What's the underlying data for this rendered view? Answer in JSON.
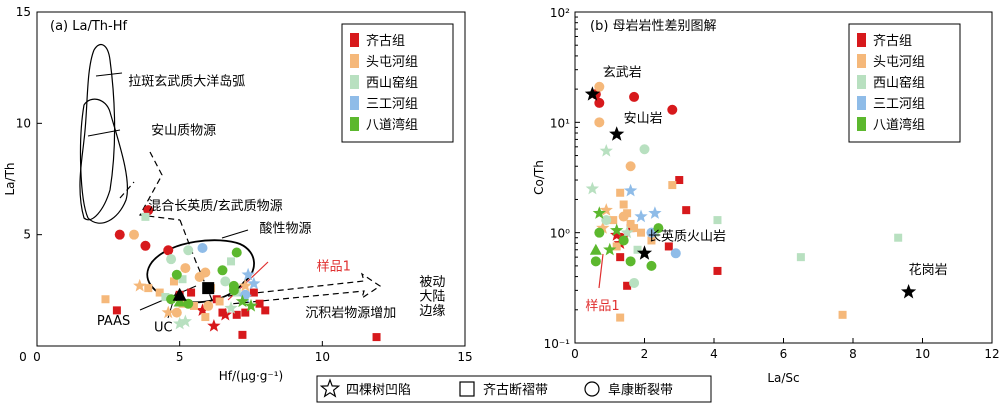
{
  "colors": {
    "qigu": "#d7191c",
    "toutunhe": "#f5b87a",
    "xishanyao": "#b8e0c0",
    "sangonghe": "#8fbce8",
    "badaowan": "#5cb82e",
    "sample_line": "#e03030"
  },
  "legend_groups": [
    "齐古组",
    "头屯河组",
    "西山窑组",
    "三工河组",
    "八道湾组"
  ],
  "bottom_legend": [
    {
      "shape": "star",
      "label": "四棵树凹陷"
    },
    {
      "shape": "square",
      "label": "齐古断褶带"
    },
    {
      "shape": "circle",
      "label": "阜康断裂带"
    }
  ],
  "chart_data": [
    {
      "type": "scatter",
      "title": "(a) La/Th-Hf",
      "xlabel": "Hf/(μg·g⁻¹)",
      "ylabel": "La/Th",
      "xlim": [
        0,
        15
      ],
      "ylim": [
        0,
        15
      ],
      "xticks": [
        0,
        5,
        10,
        15
      ],
      "yticks": [
        5,
        10,
        15
      ],
      "legend_position": "top-right",
      "annotations": [
        {
          "text": "拉斑玄武质大洋岛弧",
          "x": 3.2,
          "y": 11.7
        },
        {
          "text": "安山质物源",
          "x": 4.0,
          "y": 9.5
        },
        {
          "text": "混合长英质/玄武质物源",
          "x": 3.9,
          "y": 6.1
        },
        {
          "text": "酸性物源",
          "x": 7.8,
          "y": 5.1
        },
        {
          "text": "样品1",
          "x": 9.8,
          "y": 3.4
        },
        {
          "text": "被动",
          "x": 13.4,
          "y": 2.7
        },
        {
          "text": "大陆",
          "x": 13.4,
          "y": 2.05
        },
        {
          "text": "边缘",
          "x": 13.4,
          "y": 1.4
        },
        {
          "text": "沉积岩物源增加",
          "x": 9.4,
          "y": 1.3
        },
        {
          "text": "PAAS",
          "x": 2.1,
          "y": 0.95
        },
        {
          "text": "UC",
          "x": 4.1,
          "y": 0.65
        }
      ],
      "reference_points": [
        {
          "label": "PAAS",
          "shape": "filled-square",
          "x": 6.0,
          "y": 2.6
        },
        {
          "label": "UC",
          "shape": "filled-triangle",
          "x": 5.0,
          "y": 2.3
        }
      ],
      "series": [
        {
          "name": "齐古组",
          "points": [
            {
              "x": 2.9,
              "y": 5.0,
              "m": "circle"
            },
            {
              "x": 3.9,
              "y": 6.1,
              "m": "circle"
            },
            {
              "x": 3.8,
              "y": 4.5,
              "m": "circle"
            },
            {
              "x": 4.6,
              "y": 4.3,
              "m": "circle"
            },
            {
              "x": 2.8,
              "y": 1.6,
              "m": "square"
            },
            {
              "x": 5.0,
              "y": 2.3,
              "m": "square"
            },
            {
              "x": 5.4,
              "y": 2.4,
              "m": "square"
            },
            {
              "x": 6.3,
              "y": 2.1,
              "m": "square"
            },
            {
              "x": 6.5,
              "y": 1.5,
              "m": "square"
            },
            {
              "x": 7.0,
              "y": 1.4,
              "m": "square"
            },
            {
              "x": 7.3,
              "y": 1.5,
              "m": "square"
            },
            {
              "x": 7.6,
              "y": 2.4,
              "m": "square"
            },
            {
              "x": 7.8,
              "y": 1.9,
              "m": "square"
            },
            {
              "x": 8.0,
              "y": 1.6,
              "m": "square"
            },
            {
              "x": 7.2,
              "y": 0.5,
              "m": "square"
            },
            {
              "x": 11.9,
              "y": 0.4,
              "m": "square"
            },
            {
              "x": 5.8,
              "y": 1.6,
              "m": "star"
            },
            {
              "x": 6.2,
              "y": 0.9,
              "m": "star"
            },
            {
              "x": 6.6,
              "y": 1.4,
              "m": "star"
            }
          ]
        },
        {
          "name": "头屯河组",
          "points": [
            {
              "x": 3.4,
              "y": 5.0,
              "m": "circle"
            },
            {
              "x": 5.2,
              "y": 3.5,
              "m": "circle"
            },
            {
              "x": 5.7,
              "y": 3.1,
              "m": "circle"
            },
            {
              "x": 5.9,
              "y": 3.3,
              "m": "circle"
            },
            {
              "x": 4.9,
              "y": 1.5,
              "m": "circle"
            },
            {
              "x": 6.0,
              "y": 1.8,
              "m": "circle"
            },
            {
              "x": 2.4,
              "y": 2.1,
              "m": "square"
            },
            {
              "x": 3.9,
              "y": 2.6,
              "m": "square"
            },
            {
              "x": 4.3,
              "y": 2.4,
              "m": "square"
            },
            {
              "x": 5.1,
              "y": 1.9,
              "m": "square"
            },
            {
              "x": 5.5,
              "y": 1.8,
              "m": "square"
            },
            {
              "x": 5.9,
              "y": 1.3,
              "m": "square"
            },
            {
              "x": 6.4,
              "y": 2.0,
              "m": "square"
            },
            {
              "x": 6.1,
              "y": 2.6,
              "m": "square"
            },
            {
              "x": 4.8,
              "y": 2.9,
              "m": "square"
            },
            {
              "x": 3.6,
              "y": 2.7,
              "m": "star"
            },
            {
              "x": 4.6,
              "y": 1.5,
              "m": "star"
            },
            {
              "x": 7.3,
              "y": 2.7,
              "m": "star"
            }
          ]
        },
        {
          "name": "西山窑组",
          "points": [
            {
              "x": 4.7,
              "y": 3.9,
              "m": "circle"
            },
            {
              "x": 5.3,
              "y": 4.3,
              "m": "circle"
            },
            {
              "x": 6.6,
              "y": 2.9,
              "m": "circle"
            },
            {
              "x": 3.8,
              "y": 5.8,
              "m": "square"
            },
            {
              "x": 5.1,
              "y": 3.0,
              "m": "square"
            },
            {
              "x": 6.8,
              "y": 3.8,
              "m": "square"
            },
            {
              "x": 7.0,
              "y": 2.4,
              "m": "square"
            },
            {
              "x": 4.5,
              "y": 2.2,
              "m": "square"
            },
            {
              "x": 5.2,
              "y": 1.1,
              "m": "star"
            },
            {
              "x": 5.0,
              "y": 1.0,
              "m": "star"
            },
            {
              "x": 6.8,
              "y": 1.7,
              "m": "star"
            }
          ]
        },
        {
          "name": "三工河组",
          "points": [
            {
              "x": 5.8,
              "y": 4.4,
              "m": "circle"
            },
            {
              "x": 7.3,
              "y": 2.3,
              "m": "circle"
            },
            {
              "x": 7.4,
              "y": 3.2,
              "m": "star"
            },
            {
              "x": 7.6,
              "y": 2.8,
              "m": "star"
            },
            {
              "x": 7.3,
              "y": 2.2,
              "m": "star"
            }
          ]
        },
        {
          "name": "八道湾组",
          "points": [
            {
              "x": 4.7,
              "y": 2.1,
              "m": "circle"
            },
            {
              "x": 4.9,
              "y": 3.2,
              "m": "circle"
            },
            {
              "x": 5.3,
              "y": 1.9,
              "m": "circle"
            },
            {
              "x": 6.5,
              "y": 3.4,
              "m": "circle"
            },
            {
              "x": 6.9,
              "y": 2.5,
              "m": "circle"
            },
            {
              "x": 6.9,
              "y": 2.7,
              "m": "circle"
            },
            {
              "x": 7.0,
              "y": 4.2,
              "m": "circle"
            },
            {
              "x": 5.0,
              "y": 2.0,
              "m": "triangle"
            },
            {
              "x": 7.2,
              "y": 2.0,
              "m": "star"
            },
            {
              "x": 7.5,
              "y": 1.8,
              "m": "star"
            }
          ]
        }
      ]
    },
    {
      "type": "scatter",
      "title": "(b) 母岩岩性差别图解",
      "xlabel": "La/Sc",
      "ylabel": "Co/Th",
      "xlim": [
        0,
        12
      ],
      "ylim": [
        0.1,
        100
      ],
      "yscale": "log",
      "xticks": [
        0,
        2,
        4,
        6,
        8,
        10,
        12
      ],
      "yticks": [
        0.1,
        1,
        10,
        100
      ],
      "legend_position": "top-right",
      "annotations": [
        {
          "text": "玄武岩",
          "x": 0.8,
          "y": 26
        },
        {
          "text": "安山岩",
          "x": 1.4,
          "y": 10
        },
        {
          "text": "长英质火山岩",
          "x": 2.1,
          "y": 0.85
        },
        {
          "text": "花岗岩",
          "x": 9.6,
          "y": 0.42
        },
        {
          "text": "样品1",
          "x": 0.3,
          "y": 0.2
        }
      ],
      "reference_points": [
        {
          "label": "玄武岩",
          "shape": "black-star",
          "x": 0.5,
          "y": 18
        },
        {
          "label": "安山岩",
          "shape": "black-star",
          "x": 1.2,
          "y": 7.8
        },
        {
          "label": "长英质火山岩",
          "shape": "black-star",
          "x": 2.0,
          "y": 0.65
        },
        {
          "label": "花岗岩",
          "shape": "black-star",
          "x": 9.6,
          "y": 0.29
        }
      ],
      "series": [
        {
          "name": "齐古组",
          "points": [
            {
              "x": 0.6,
              "y": 18,
              "m": "circle"
            },
            {
              "x": 1.7,
              "y": 17,
              "m": "circle"
            },
            {
              "x": 2.8,
              "y": 13,
              "m": "circle"
            },
            {
              "x": 0.7,
              "y": 15,
              "m": "circle"
            },
            {
              "x": 3.0,
              "y": 3.0,
              "m": "square"
            },
            {
              "x": 3.2,
              "y": 1.6,
              "m": "square"
            },
            {
              "x": 2.7,
              "y": 0.75,
              "m": "square"
            },
            {
              "x": 4.1,
              "y": 0.45,
              "m": "square"
            },
            {
              "x": 1.3,
              "y": 0.6,
              "m": "square"
            },
            {
              "x": 1.4,
              "y": 0.9,
              "m": "square"
            },
            {
              "x": 1.6,
              "y": 1.1,
              "m": "square"
            },
            {
              "x": 1.5,
              "y": 0.33,
              "m": "square"
            },
            {
              "x": 1.3,
              "y": 0.8,
              "m": "star"
            },
            {
              "x": 1.2,
              "y": 0.95,
              "m": "star"
            }
          ]
        },
        {
          "name": "头屯河组",
          "points": [
            {
              "x": 0.7,
              "y": 21,
              "m": "circle"
            },
            {
              "x": 0.7,
              "y": 10,
              "m": "circle"
            },
            {
              "x": 1.6,
              "y": 4.0,
              "m": "circle"
            },
            {
              "x": 1.4,
              "y": 1.4,
              "m": "circle"
            },
            {
              "x": 2.8,
              "y": 2.7,
              "m": "square"
            },
            {
              "x": 1.3,
              "y": 2.3,
              "m": "square"
            },
            {
              "x": 1.4,
              "y": 1.8,
              "m": "square"
            },
            {
              "x": 1.5,
              "y": 1.5,
              "m": "square"
            },
            {
              "x": 1.6,
              "y": 1.2,
              "m": "square"
            },
            {
              "x": 1.7,
              "y": 1.1,
              "m": "square"
            },
            {
              "x": 1.9,
              "y": 1.0,
              "m": "square"
            },
            {
              "x": 1.1,
              "y": 1.3,
              "m": "square"
            },
            {
              "x": 1.2,
              "y": 0.75,
              "m": "square"
            },
            {
              "x": 2.2,
              "y": 0.85,
              "m": "square"
            },
            {
              "x": 1.3,
              "y": 0.17,
              "m": "square"
            },
            {
              "x": 7.7,
              "y": 0.18,
              "m": "square"
            },
            {
              "x": 0.9,
              "y": 1.6,
              "m": "star"
            },
            {
              "x": 0.8,
              "y": 1.1,
              "m": "star"
            }
          ]
        },
        {
          "name": "西山窑组",
          "points": [
            {
              "x": 2.0,
              "y": 5.7,
              "m": "circle"
            },
            {
              "x": 0.9,
              "y": 1.3,
              "m": "circle"
            },
            {
              "x": 1.7,
              "y": 0.35,
              "m": "circle"
            },
            {
              "x": 4.1,
              "y": 1.3,
              "m": "square"
            },
            {
              "x": 6.5,
              "y": 0.6,
              "m": "square"
            },
            {
              "x": 9.3,
              "y": 0.9,
              "m": "square"
            },
            {
              "x": 2.3,
              "y": 1.0,
              "m": "square"
            },
            {
              "x": 1.8,
              "y": 0.7,
              "m": "square"
            },
            {
              "x": 0.9,
              "y": 5.5,
              "m": "star"
            },
            {
              "x": 0.5,
              "y": 2.5,
              "m": "star"
            },
            {
              "x": 1.5,
              "y": 1.0,
              "m": "star"
            }
          ]
        },
        {
          "name": "三工河组",
          "points": [
            {
              "x": 2.9,
              "y": 0.65,
              "m": "circle"
            },
            {
              "x": 2.2,
              "y": 1.0,
              "m": "circle"
            },
            {
              "x": 1.6,
              "y": 2.4,
              "m": "star"
            },
            {
              "x": 2.3,
              "y": 1.5,
              "m": "star"
            },
            {
              "x": 1.9,
              "y": 1.4,
              "m": "star"
            }
          ]
        },
        {
          "name": "八道湾组",
          "points": [
            {
              "x": 1.4,
              "y": 0.85,
              "m": "circle"
            },
            {
              "x": 1.6,
              "y": 0.55,
              "m": "circle"
            },
            {
              "x": 2.2,
              "y": 0.5,
              "m": "circle"
            },
            {
              "x": 2.4,
              "y": 1.1,
              "m": "circle"
            },
            {
              "x": 0.6,
              "y": 0.55,
              "m": "circle"
            },
            {
              "x": 0.7,
              "y": 1.0,
              "m": "circle"
            },
            {
              "x": 0.6,
              "y": 0.7,
              "m": "triangle"
            },
            {
              "x": 0.7,
              "y": 1.5,
              "m": "star"
            },
            {
              "x": 1.0,
              "y": 0.7,
              "m": "star"
            },
            {
              "x": 1.2,
              "y": 1.05,
              "m": "star"
            }
          ]
        }
      ]
    }
  ]
}
